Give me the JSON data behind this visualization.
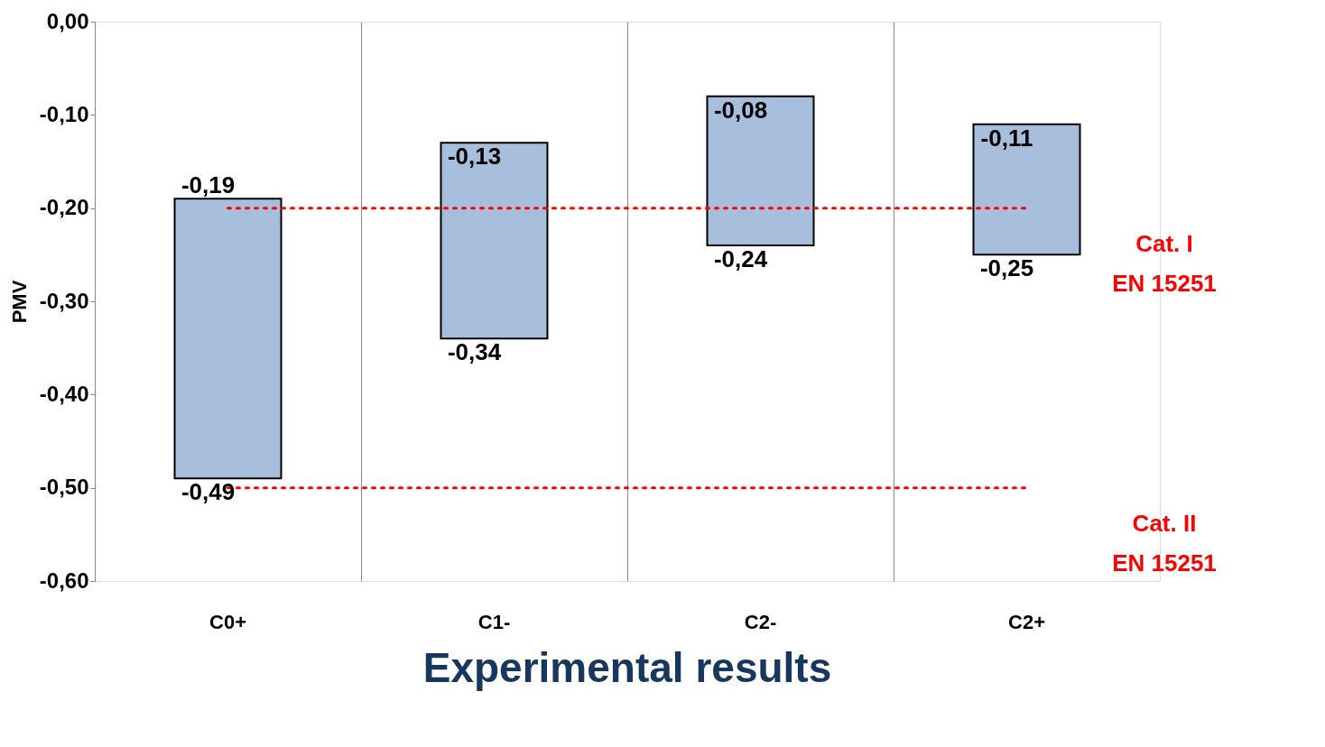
{
  "chart_data": {
    "type": "bar",
    "title": "Experimental results",
    "ylabel": "PMV",
    "categories": [
      "C0+",
      "C1-",
      "C2-",
      "C2+"
    ],
    "base": [
      -0.49,
      -0.34,
      -0.24,
      -0.25
    ],
    "values": [
      0.3,
      0.21,
      0.16,
      0.14
    ],
    "color": "#a7bfdd",
    "ylim": [
      -0.6,
      0.0
    ],
    "yticks": [
      {
        "value": -0.6,
        "label": "-0,60"
      },
      {
        "value": -0.5,
        "label": "-0,50"
      },
      {
        "value": -0.4,
        "label": "-0,40"
      },
      {
        "value": -0.3,
        "label": "-0,30"
      },
      {
        "value": -0.2,
        "label": "-0,20"
      },
      {
        "value": -0.1,
        "label": "-0,10"
      },
      {
        "value": 0.0,
        "label": "0,00"
      }
    ],
    "grid": "x",
    "ref_lines": [
      {
        "axis": "y",
        "value": -0.2,
        "label": "Cat. I\nEN 15251",
        "color": "#ff0000",
        "line_style": "dotted"
      },
      {
        "axis": "y",
        "value": -0.5,
        "label": "Cat. II\nEN 15251",
        "color": "#ff0000",
        "line_style": "dotted"
      }
    ],
    "annotations": [
      {
        "text": "-0,19",
        "x": "C0+",
        "y": -0.19
      },
      {
        "text": "-0,49",
        "x": "C0+",
        "y": -0.49
      },
      {
        "text": "-0,13",
        "x": "C1-",
        "y": -0.13
      },
      {
        "text": "-0,34",
        "x": "C1-",
        "y": -0.34
      },
      {
        "text": "-0,08",
        "x": "C2-",
        "y": -0.08
      },
      {
        "text": "-0,24",
        "x": "C2-",
        "y": -0.24
      },
      {
        "text": "-0,11",
        "x": "C2+",
        "y": -0.11
      },
      {
        "text": "-0,25",
        "x": "C2+",
        "y": -0.25
      }
    ]
  }
}
